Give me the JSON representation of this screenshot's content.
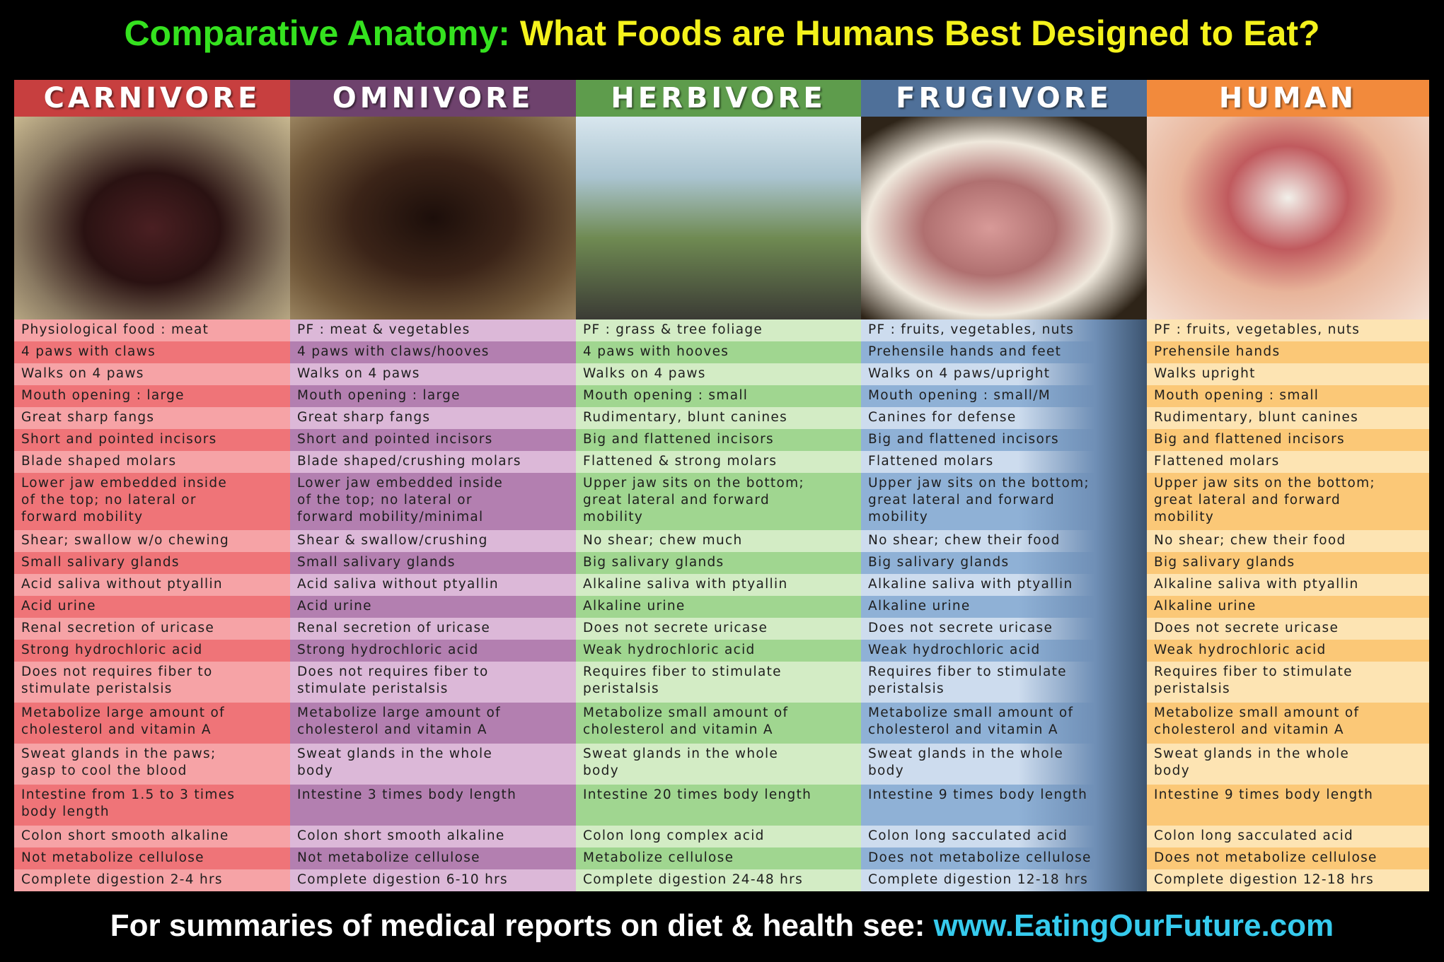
{
  "title": {
    "part1": "Comparative Anatomy:",
    "part2": "What Foods are Humans Best Designed to Eat?"
  },
  "columns": [
    {
      "name": "CARNIVORE",
      "cells": [
        "Physiological food : meat",
        "4 paws with claws",
        "Walks on 4 paws",
        "Mouth opening : large",
        "Great sharp fangs",
        "Short and pointed incisors",
        "Blade shaped molars",
        [
          "Lower jaw embedded inside",
          "of the top; no lateral or",
          "forward mobility"
        ],
        "Shear; swallow w/o chewing",
        "Small salivary glands",
        "Acid saliva without ptyallin",
        "Acid urine",
        "Renal secretion of uricase",
        "Strong hydrochloric acid",
        [
          "Does not requires fiber to",
          "stimulate peristalsis"
        ],
        [
          "Metabolize large amount of",
          "cholesterol and vitamin A"
        ],
        [
          "Sweat glands in the paws;",
          "gasp to cool the blood"
        ],
        [
          "Intestine from 1.5 to 3 times",
          "body length"
        ],
        "Colon short smooth alkaline",
        "Not metabolize cellulose",
        "Complete digestion 2-4 hrs"
      ]
    },
    {
      "name": "OMNIVORE",
      "cells": [
        "PF : meat & vegetables",
        "4 paws with claws/hooves",
        "Walks on 4 paws",
        "Mouth opening : large",
        "Great sharp fangs",
        "Short and pointed incisors",
        "Blade shaped/crushing molars",
        [
          "Lower jaw embedded inside",
          "of the top; no lateral or",
          "forward mobility/minimal"
        ],
        "Shear & swallow/crushing",
        "Small salivary glands",
        "Acid saliva without ptyallin",
        "Acid urine",
        "Renal secretion of uricase",
        "Strong hydrochloric acid",
        [
          "Does not requires fiber to",
          "stimulate peristalsis"
        ],
        [
          "Metabolize large amount of",
          "cholesterol and vitamin A"
        ],
        [
          "Sweat glands in the whole",
          "body"
        ],
        "Intestine 3 times body length",
        "Colon short smooth alkaline",
        "Not metabolize cellulose",
        "Complete digestion 6-10 hrs"
      ]
    },
    {
      "name": "HERBIVORE",
      "cells": [
        "PF : grass & tree foliage",
        "4 paws with hooves",
        "Walks on 4 paws",
        "Mouth opening : small",
        "Rudimentary, blunt canines",
        "Big and flattened incisors",
        "Flattened & strong molars",
        [
          "Upper jaw sits on the bottom;",
          "great lateral and forward",
          "mobility"
        ],
        "No shear; chew much",
        "Big salivary glands",
        "Alkaline saliva with ptyallin",
        "Alkaline urine",
        "Does not secrete uricase",
        "Weak hydrochloric acid",
        [
          "Requires fiber to stimulate",
          "peristalsis"
        ],
        [
          "Metabolize small amount of",
          "cholesterol and vitamin A"
        ],
        [
          "Sweat glands in the whole",
          "body"
        ],
        "Intestine 20 times body length",
        "Colon long complex acid",
        "Metabolize cellulose",
        "Complete digestion 24-48 hrs"
      ]
    },
    {
      "name": "FRUGIVORE",
      "cells": [
        "PF : fruits, vegetables, nuts",
        "Prehensile hands and feet",
        "Walks on 4 paws/upright",
        "Mouth opening : small/M",
        "Canines for defense",
        "Big and flattened incisors",
        "Flattened molars",
        [
          "Upper jaw sits on the bottom;",
          "great lateral and forward",
          "mobility"
        ],
        "No shear; chew their food",
        "Big salivary glands",
        "Alkaline saliva with ptyallin",
        "Alkaline urine",
        "Does not secrete uricase",
        "Weak hydrochloric acid",
        [
          "Requires fiber to stimulate",
          "peristalsis"
        ],
        [
          "Metabolize small amount of",
          "cholesterol and vitamin A"
        ],
        [
          "Sweat glands in the whole",
          "body"
        ],
        "Intestine 9 times body length",
        "Colon long sacculated acid",
        "Does not metabolize cellulose",
        "Complete digestion 12-18 hrs"
      ]
    },
    {
      "name": "HUMAN",
      "cells": [
        "PF : fruits, vegetables, nuts",
        "Prehensile hands",
        "Walks upright",
        "Mouth opening : small",
        "Rudimentary, blunt canines",
        "Big and flattened incisors",
        "Flattened molars",
        [
          "Upper jaw sits on the bottom;",
          "great lateral and forward",
          "mobility"
        ],
        "No shear; chew their food",
        "Big salivary glands",
        "Alkaline saliva with ptyallin",
        "Alkaline urine",
        "Does not secrete uricase",
        "Weak hydrochloric acid",
        [
          "Requires fiber to stimulate",
          "peristalsis"
        ],
        [
          "Metabolize small amount of",
          "cholesterol and vitamin A"
        ],
        [
          "Sweat glands in the whole",
          "body"
        ],
        "Intestine 9 times body length",
        "Colon long sacculated acid",
        "Does not metabolize cellulose",
        "Complete digestion 12-18 hrs"
      ]
    }
  ],
  "footer": {
    "text": "For summaries of medical reports on diet & health see:",
    "link": "www.EatingOurFuture.com"
  }
}
